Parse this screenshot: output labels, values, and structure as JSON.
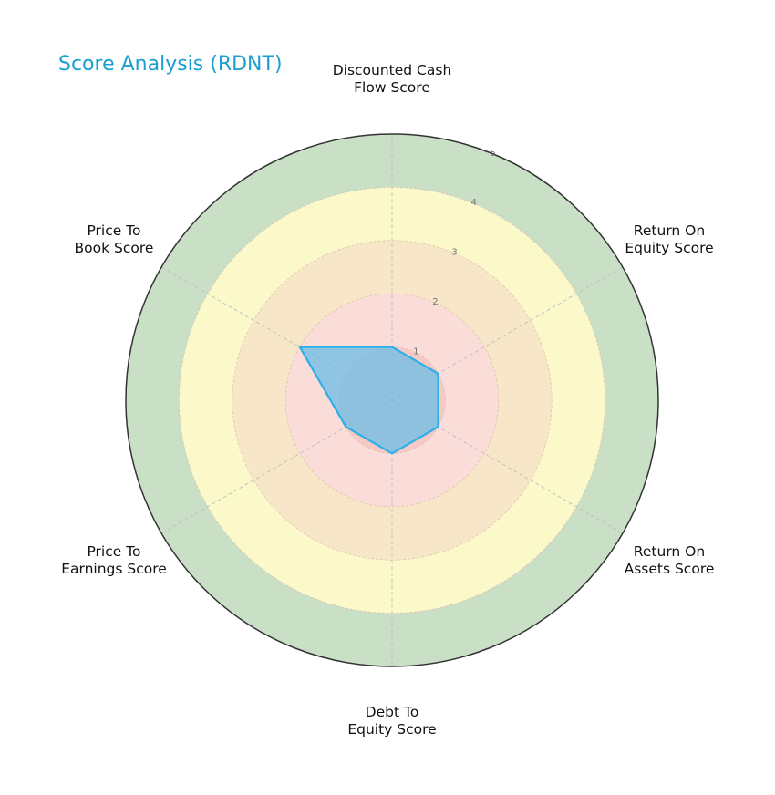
{
  "title": "Score Analysis (RDNT)",
  "colors": {
    "title": "#1a9fd1",
    "series_line": "#2bb0ea",
    "series_fill": "#6bbde6",
    "ring_1": "#f6c9c5",
    "ring_2": "#fadcd8",
    "ring_3": "#f8e6c8",
    "ring_4": "#fbf8c9",
    "ring_5": "#c9e0c7"
  },
  "axes": [
    {
      "label_line1": "Discounted Cash",
      "label_line2": "Flow Score"
    },
    {
      "label_line1": "Return On",
      "label_line2": "Equity Score"
    },
    {
      "label_line1": "Return On",
      "label_line2": "Assets Score"
    },
    {
      "label_line1": "Debt To",
      "label_line2": "Equity Score"
    },
    {
      "label_line1": "Price To",
      "label_line2": "Earnings Score"
    },
    {
      "label_line1": "Price To",
      "label_line2": "Book Score"
    }
  ],
  "ticks": [
    "1",
    "2",
    "3",
    "4",
    "5"
  ],
  "chart_data": {
    "type": "radar",
    "title": "Score Analysis (RDNT)",
    "categories": [
      "Discounted Cash Flow Score",
      "Return On Equity Score",
      "Return On Assets Score",
      "Debt To Equity Score",
      "Price To Earnings Score",
      "Price To Book Score"
    ],
    "series": [
      {
        "name": "RDNT",
        "values": [
          1,
          1,
          1,
          1,
          1,
          2
        ]
      }
    ],
    "rlim": [
      0,
      5
    ],
    "rticks": [
      1,
      2,
      3,
      4,
      5
    ],
    "grid": true,
    "legend": false
  }
}
